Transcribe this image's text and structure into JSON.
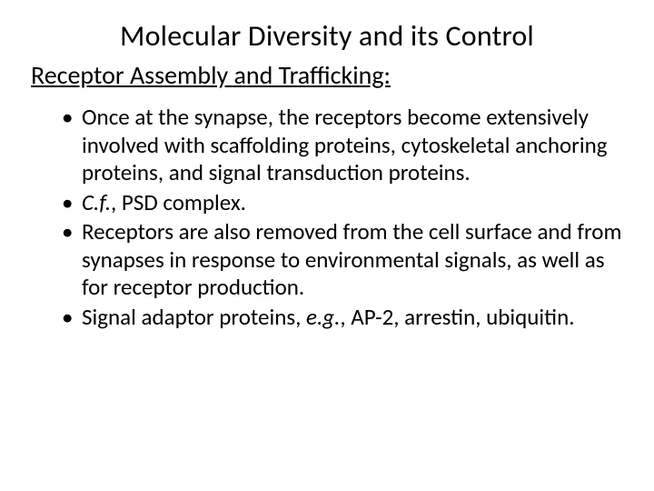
{
  "title": {
    "text": "Molecular Diversity and its Control",
    "fontsize": 32,
    "color": "#000000"
  },
  "subtitle": {
    "text": "Receptor Assembly and Trafficking:",
    "fontsize": 28,
    "color": "#000000"
  },
  "bullets": {
    "fontsize": 25,
    "line_height": 1.22,
    "color": "#000000",
    "items": [
      {
        "plain": "Once at the synapse, the receptors become extensively involved with scaffolding proteins, cytoskeletal anchoring proteins, and signal transduction proteins."
      },
      {
        "italic_prefix": "C.f.",
        "rest": ", PSD complex."
      },
      {
        "plain": "Receptors are also removed from the cell surface and from synapses in response to environmental signals, as well as for receptor production."
      },
      {
        "pre": "Signal adaptor proteins, ",
        "italic_mid": "e.g.",
        "post": ", AP-2, arrestin, ubiquitin."
      }
    ]
  },
  "background_color": "#ffffff"
}
